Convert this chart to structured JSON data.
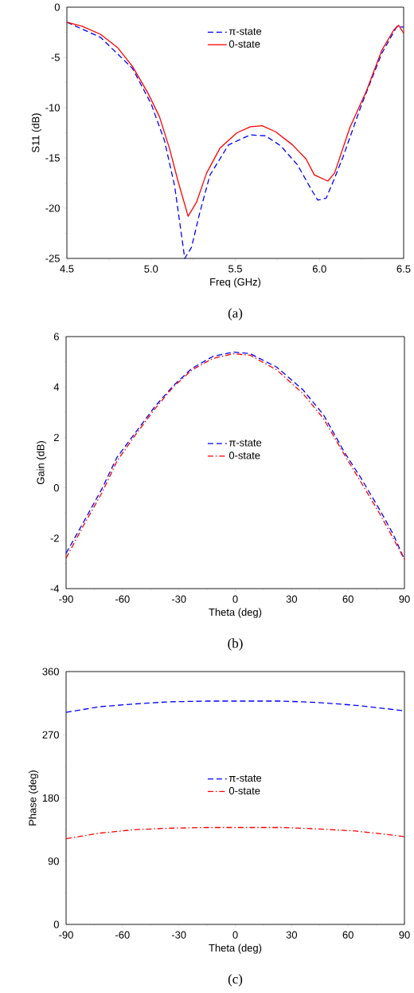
{
  "chart_data": [
    {
      "type": "line",
      "xlabel": "Freq (GHz)",
      "ylabel": "S11 (dB)",
      "annotations": [
        "(a)"
      ],
      "legend": "top",
      "xlim": [
        4.5,
        6.5
      ],
      "ylim": [
        -25,
        0
      ],
      "xticks": [
        {
          "value": 4.5,
          "label": "4.5"
        },
        {
          "value": 5,
          "label": "5.0"
        },
        {
          "value": 5.5,
          "label": "5.5"
        },
        {
          "value": 6,
          "label": "6.0"
        },
        {
          "value": 6.5,
          "label": "6.5"
        }
      ],
      "yticks": [
        -25,
        -20,
        -15,
        -10,
        -5,
        0
      ],
      "series": [
        {
          "name": "π-state",
          "color": "#0000ff",
          "line_style": "dashed",
          "x": [
            4.5,
            4.7,
            4.89,
            5.0,
            5.08,
            5.14,
            5.18,
            5.2,
            5.24,
            5.29,
            5.35,
            5.46,
            5.59,
            5.68,
            5.77,
            5.87,
            5.95,
            5.99,
            6.04,
            6.09,
            6.14,
            6.25,
            6.37,
            6.46,
            6.5
          ],
          "values": [
            -1.5,
            -3.0,
            -6.1,
            -9.6,
            -13.3,
            -17.8,
            -22.6,
            -25.0,
            -23.9,
            -20.4,
            -16.7,
            -13.7,
            -12.7,
            -12.8,
            -13.8,
            -15.7,
            -18.1,
            -19.2,
            -19.0,
            -17.0,
            -14.9,
            -9.7,
            -4.6,
            -1.9,
            -2.0
          ]
        },
        {
          "name": "0-state",
          "color": "#ff0000",
          "line_style": "solid",
          "x": [
            4.5,
            4.59,
            4.7,
            4.8,
            4.89,
            4.98,
            5.05,
            5.11,
            5.16,
            5.22,
            5.27,
            5.33,
            5.41,
            5.51,
            5.59,
            5.66,
            5.74,
            5.84,
            5.92,
            5.97,
            6.05,
            6.09,
            6.18,
            6.28,
            6.37,
            6.44,
            6.47,
            6.5
          ],
          "values": [
            -1.5,
            -1.9,
            -2.7,
            -4.0,
            -5.9,
            -8.5,
            -10.9,
            -14.1,
            -17.3,
            -20.8,
            -19.4,
            -16.5,
            -14.0,
            -12.5,
            -11.9,
            -11.8,
            -12.4,
            -13.7,
            -15.1,
            -16.7,
            -17.3,
            -16.5,
            -12.0,
            -8.3,
            -4.3,
            -2.3,
            -1.8,
            -2.6
          ]
        }
      ]
    },
    {
      "type": "line",
      "xlabel": "Theta (deg)",
      "ylabel": "Gain (dB)",
      "annotations": [
        "(b)"
      ],
      "legend": "center",
      "xlim": [
        -90,
        90
      ],
      "ylim": [
        -4,
        6
      ],
      "xticks": [
        -90,
        -60,
        -30,
        0,
        30,
        60,
        90
      ],
      "yticks": [
        -4,
        -2,
        0,
        2,
        4,
        6
      ],
      "series": [
        {
          "name": "π-state",
          "color": "#0000ff",
          "line_style": "dashed",
          "x": [
            -90,
            -81,
            -71,
            -63,
            -53,
            -43,
            -33,
            -23,
            -12,
            -1,
            8,
            22,
            36,
            47,
            58,
            67,
            77,
            84,
            90
          ],
          "values": [
            -2.6,
            -1.4,
            -0.05,
            1.2,
            2.2,
            3.2,
            4.05,
            4.74,
            5.21,
            5.39,
            5.32,
            4.79,
            3.89,
            2.89,
            1.42,
            0.37,
            -0.89,
            -1.84,
            -2.84
          ]
        },
        {
          "name": "0-state",
          "color": "#ff0000",
          "line_style": "dashdot",
          "x": [
            -90,
            -81,
            -71,
            -63,
            -53,
            -43,
            -33,
            -23,
            -12,
            -1,
            8,
            22,
            36,
            47,
            58,
            67,
            77,
            84,
            90
          ],
          "values": [
            -2.79,
            -1.53,
            -0.21,
            1.05,
            2.11,
            3.11,
            4.0,
            4.68,
            5.13,
            5.32,
            5.26,
            4.68,
            3.74,
            2.74,
            1.32,
            0.21,
            -1.05,
            -2.0,
            -2.84
          ]
        }
      ]
    },
    {
      "type": "line",
      "xlabel": "Theta (deg)",
      "ylabel": "Phase (deg)",
      "annotations": [
        "(c)"
      ],
      "legend": "center",
      "xlim": [
        -90,
        90
      ],
      "ylim": [
        0,
        360
      ],
      "xticks": [
        -90,
        -60,
        -30,
        0,
        30,
        60,
        90
      ],
      "yticks": [
        0,
        90,
        180,
        270,
        360
      ],
      "series": [
        {
          "name": "π-state",
          "color": "#0000ff",
          "line_style": "dashed",
          "x": [
            -90,
            -72,
            -53,
            -35,
            -15,
            5,
            25,
            44,
            64,
            81,
            90
          ],
          "values": [
            302,
            310,
            314,
            317,
            318,
            318,
            318,
            316,
            312,
            307,
            304
          ]
        },
        {
          "name": "0-state",
          "color": "#ff0000",
          "line_style": "dashdot",
          "x": [
            -90,
            -72,
            -53,
            -35,
            -15,
            5,
            25,
            44,
            64,
            81,
            90
          ],
          "values": [
            122,
            130,
            135,
            137,
            138,
            138,
            138,
            136,
            133,
            128,
            125
          ]
        }
      ]
    }
  ]
}
